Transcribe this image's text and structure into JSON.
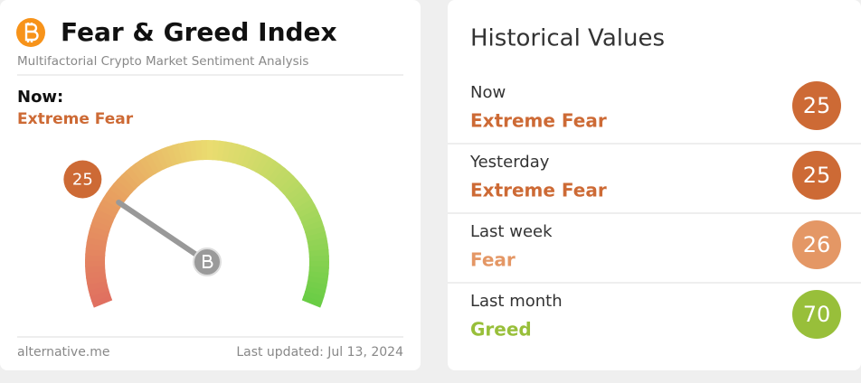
{
  "index_card": {
    "title": "Fear & Greed Index",
    "subtitle": "Multifactorial Crypto Market Sentiment Analysis",
    "now_label": "Now:",
    "now_classification": "Extreme Fear",
    "now_color": "#cd6a35",
    "value": 25,
    "gauge_range": [
      0,
      100
    ],
    "source": "alternative.me",
    "last_updated": "Last updated: Jul 13, 2024"
  },
  "historical": {
    "title": "Historical Values",
    "rows": [
      {
        "period": "Now",
        "classification": "Extreme Fear",
        "value": 25,
        "color": "#cd6a35"
      },
      {
        "period": "Yesterday",
        "classification": "Extreme Fear",
        "value": 25,
        "color": "#cd6a35"
      },
      {
        "period": "Last week",
        "classification": "Fear",
        "value": 26,
        "color": "#e49765"
      },
      {
        "period": "Last month",
        "classification": "Greed",
        "value": 70,
        "color": "#98bf3a"
      }
    ]
  }
}
